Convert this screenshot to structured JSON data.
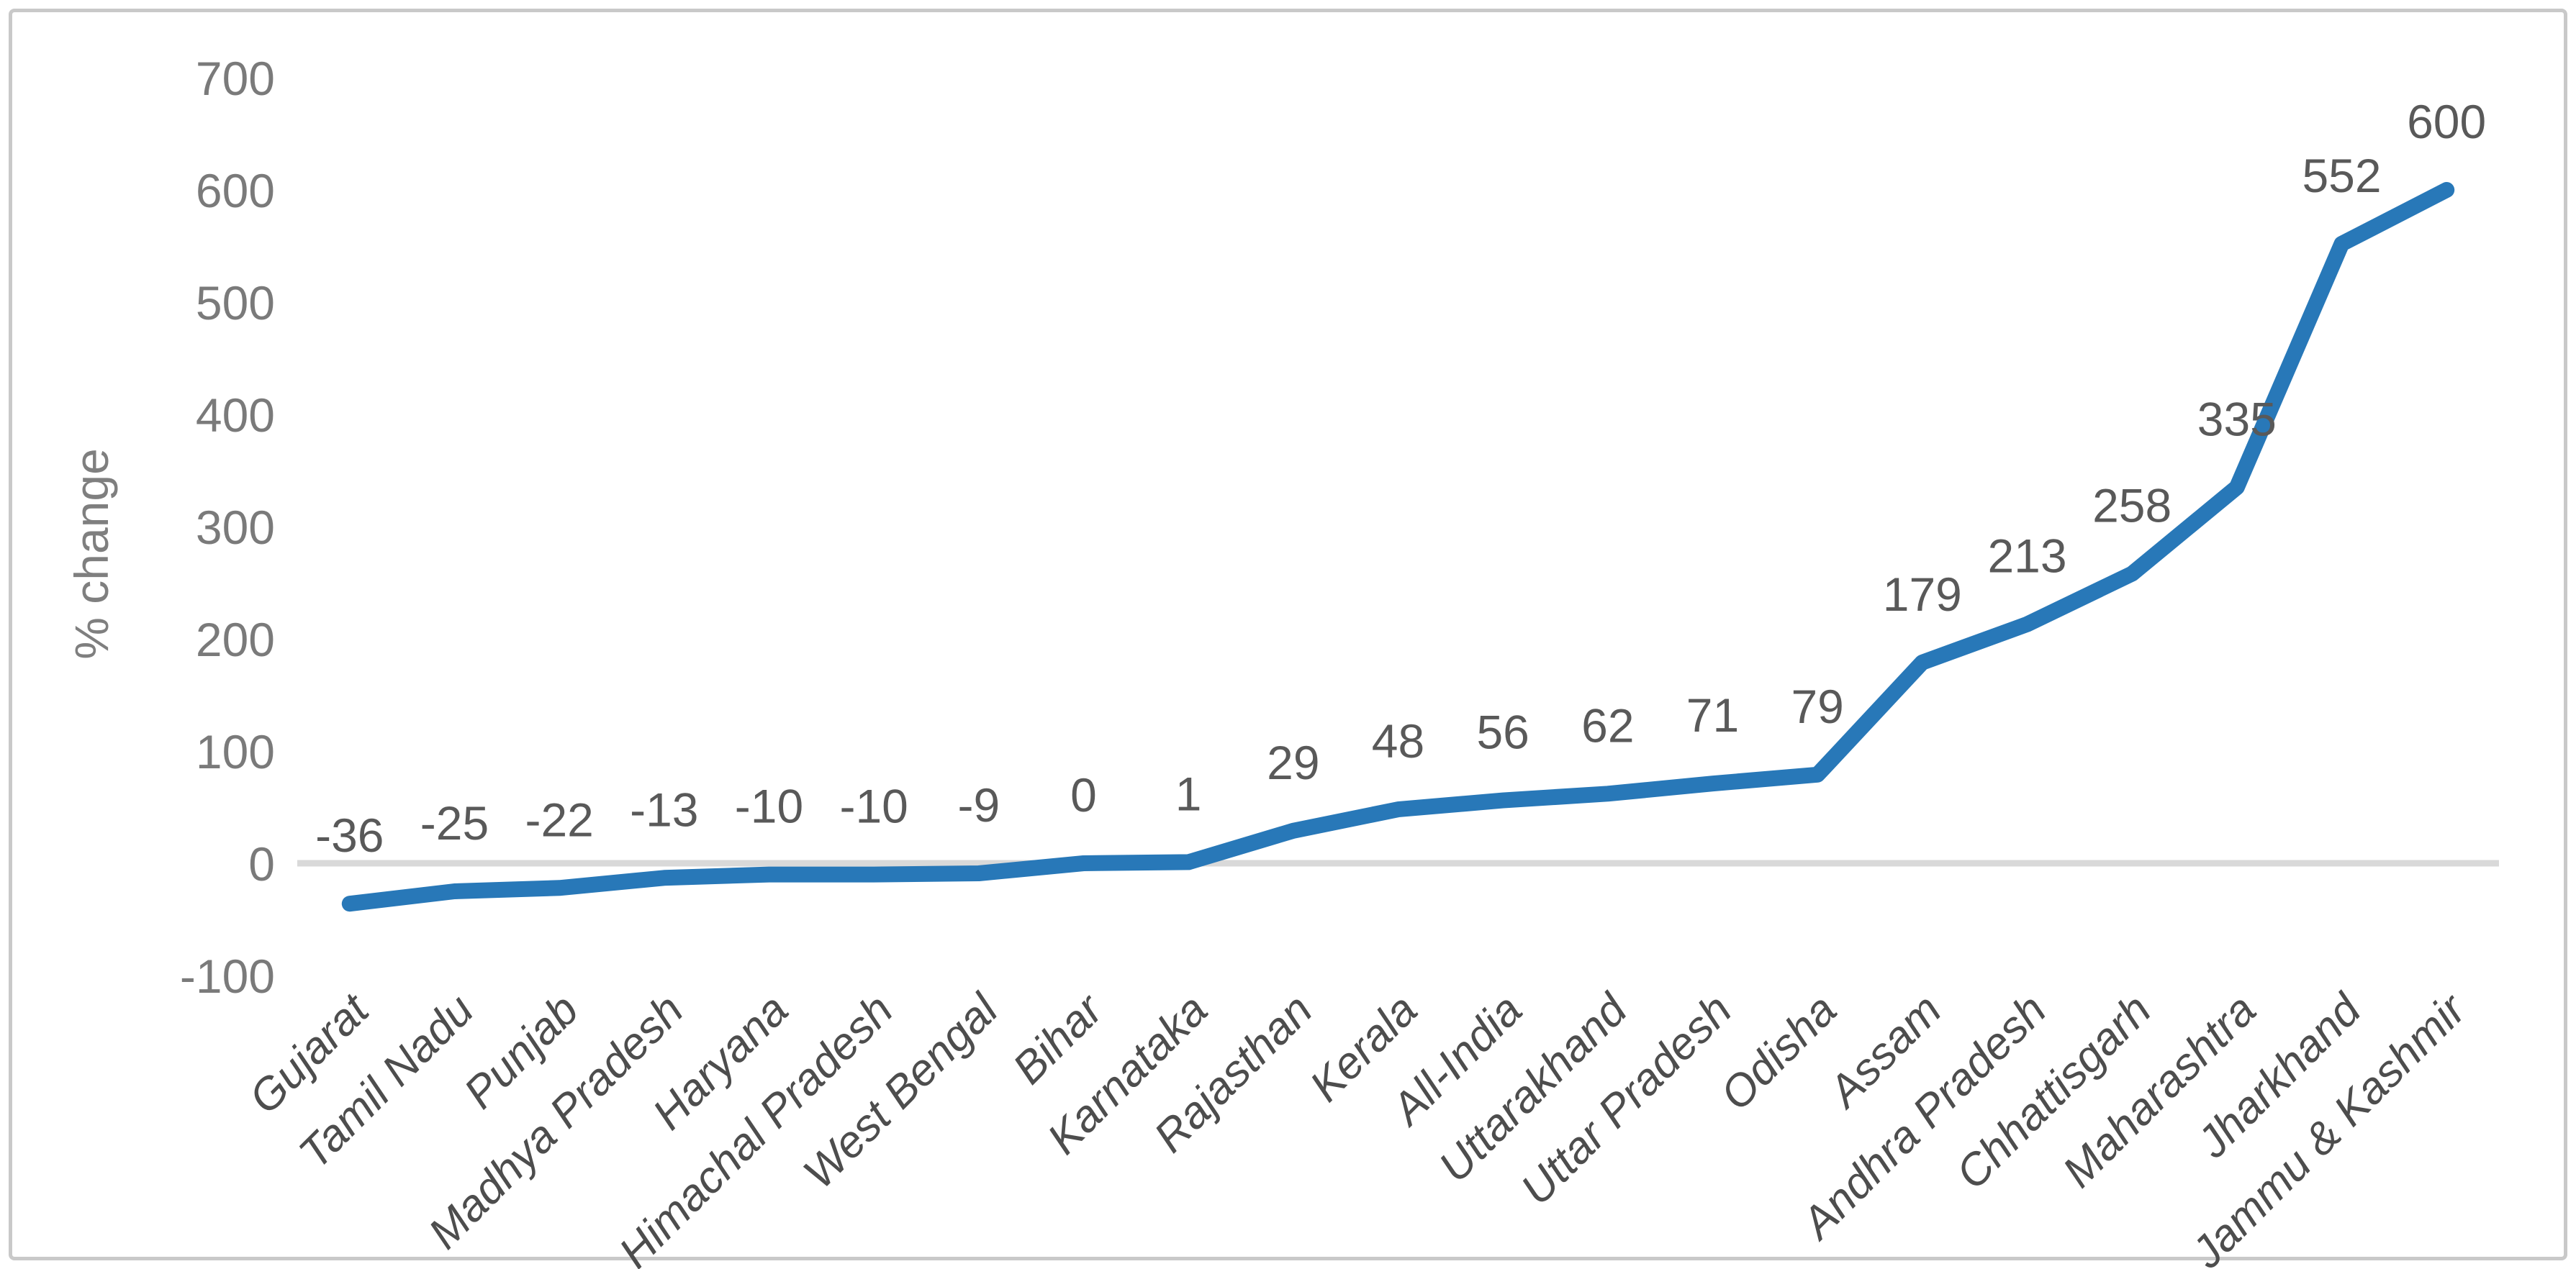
{
  "chart_data": {
    "type": "line",
    "categories": [
      "Gujarat",
      "Tamil Nadu",
      "Punjab",
      "Madhya Pradesh",
      "Haryana",
      "Himachal Pradesh",
      "West Bengal",
      "Bihar",
      "Karnataka",
      "Rajasthan",
      "Kerala",
      "All-India",
      "Uttarakhand",
      "Uttar Pradesh",
      "Odisha",
      "Assam",
      "Andhra Pradesh",
      "Chhattisgarh",
      "Maharashtra",
      "Jharkhand",
      "Jammu & Kashmir"
    ],
    "values": [
      -36,
      -25,
      -22,
      -13,
      -10,
      -10,
      -9,
      0,
      1,
      29,
      48,
      56,
      62,
      71,
      79,
      179,
      213,
      258,
      335,
      552,
      600
    ],
    "ylabel": "% change",
    "yticks": [
      700,
      600,
      500,
      400,
      300,
      200,
      100,
      0,
      -100
    ],
    "ylim": [
      -100,
      700
    ],
    "grid": "zero-line-only",
    "legend": "none",
    "colors": {
      "line": "#2878B8",
      "zero_line": "#D9D9D9",
      "data_label": "#595959",
      "axis_tick": "#7A7A7A",
      "category_label": "#4D4D4D",
      "axis_title": "#7F7F7F",
      "frame_border": "#C9C9C9"
    }
  }
}
